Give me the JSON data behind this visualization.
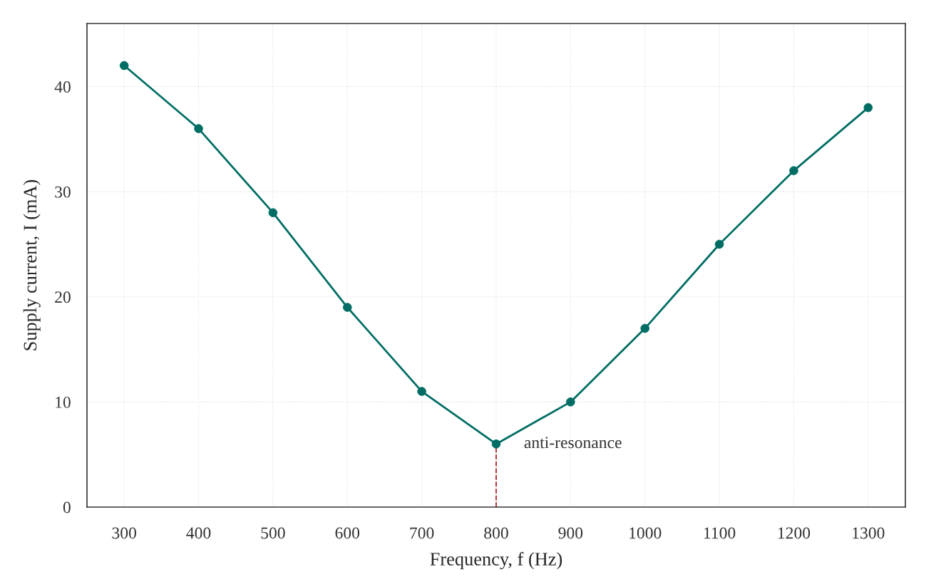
{
  "chart_data": {
    "type": "line",
    "xlabel": "Frequency, f (Hz)",
    "ylabel": "Supply current, I (mA)",
    "x": [
      300,
      400,
      500,
      600,
      700,
      800,
      900,
      1000,
      1100,
      1200,
      1300
    ],
    "series": [
      {
        "color": "#006d64",
        "values": [
          42,
          36,
          28,
          19,
          11,
          6,
          10,
          17,
          25,
          32,
          38
        ]
      }
    ],
    "xlim": [
      250,
      1350
    ],
    "xticks": [
      300,
      400,
      500,
      600,
      700,
      800,
      900,
      1000,
      1100,
      1200,
      1300
    ],
    "ylim": [
      0,
      46
    ],
    "yticks": [
      0,
      10,
      20,
      30,
      40
    ],
    "ref_lines": [
      {
        "axis": "x",
        "value": 800,
        "color": "#b22222",
        "line_style": "dashed"
      }
    ],
    "annotations": [
      {
        "text": "anti-resonance",
        "x": 800,
        "y": 6
      }
    ],
    "grid": true,
    "marker": "circle",
    "line_style": "solid",
    "legend": false
  }
}
